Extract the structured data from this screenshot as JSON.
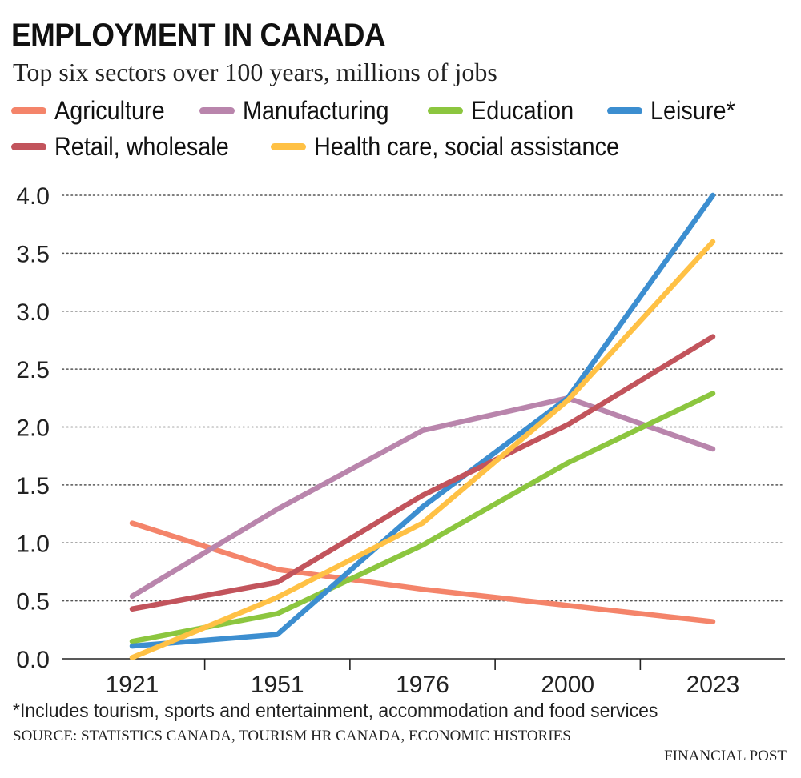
{
  "header": {
    "title": "EMPLOYMENT IN CANADA",
    "subtitle": "Top six sectors over 100 years, millions of jobs"
  },
  "footer": {
    "note": "*Includes tourism, sports and entertainment, accommodation and food services",
    "source": "SOURCE: STATISTICS CANADA, TOURISM HR CANADA, ECONOMIC HISTORIES",
    "publisher": "FINANCIAL POST"
  },
  "chart_data": {
    "type": "line",
    "title": "EMPLOYMENT IN CANADA",
    "subtitle": "Top six sectors over 100 years, millions of jobs",
    "x": [
      "1921",
      "1951",
      "1976",
      "2000",
      "2023"
    ],
    "ylim": [
      0,
      4.0
    ],
    "yticks": [
      "0.0",
      "0.5",
      "1.0",
      "1.5",
      "2.0",
      "2.5",
      "3.0",
      "3.5",
      "4.0"
    ],
    "grid": "horizontal dotted",
    "legend_position": "top",
    "series": [
      {
        "name": "Agriculture",
        "color": "#f4846a",
        "values": [
          1.17,
          0.77,
          0.6,
          0.46,
          0.32
        ]
      },
      {
        "name": "Manufacturing",
        "color": "#b985ac",
        "values": [
          0.54,
          1.29,
          1.97,
          2.25,
          1.81
        ]
      },
      {
        "name": "Education",
        "color": "#8cc63f",
        "values": [
          0.15,
          0.39,
          0.98,
          1.69,
          2.29
        ]
      },
      {
        "name": "Leisure*",
        "color": "#3c8ed0",
        "values": [
          0.11,
          0.21,
          1.31,
          2.25,
          4.0
        ]
      },
      {
        "name": "Retail, wholesale",
        "color": "#c2545c",
        "values": [
          0.43,
          0.66,
          1.41,
          2.02,
          2.78
        ]
      },
      {
        "name": "Health care, social assistance",
        "color": "#ffc145",
        "values": [
          0.01,
          0.53,
          1.17,
          2.23,
          3.6
        ]
      }
    ]
  }
}
